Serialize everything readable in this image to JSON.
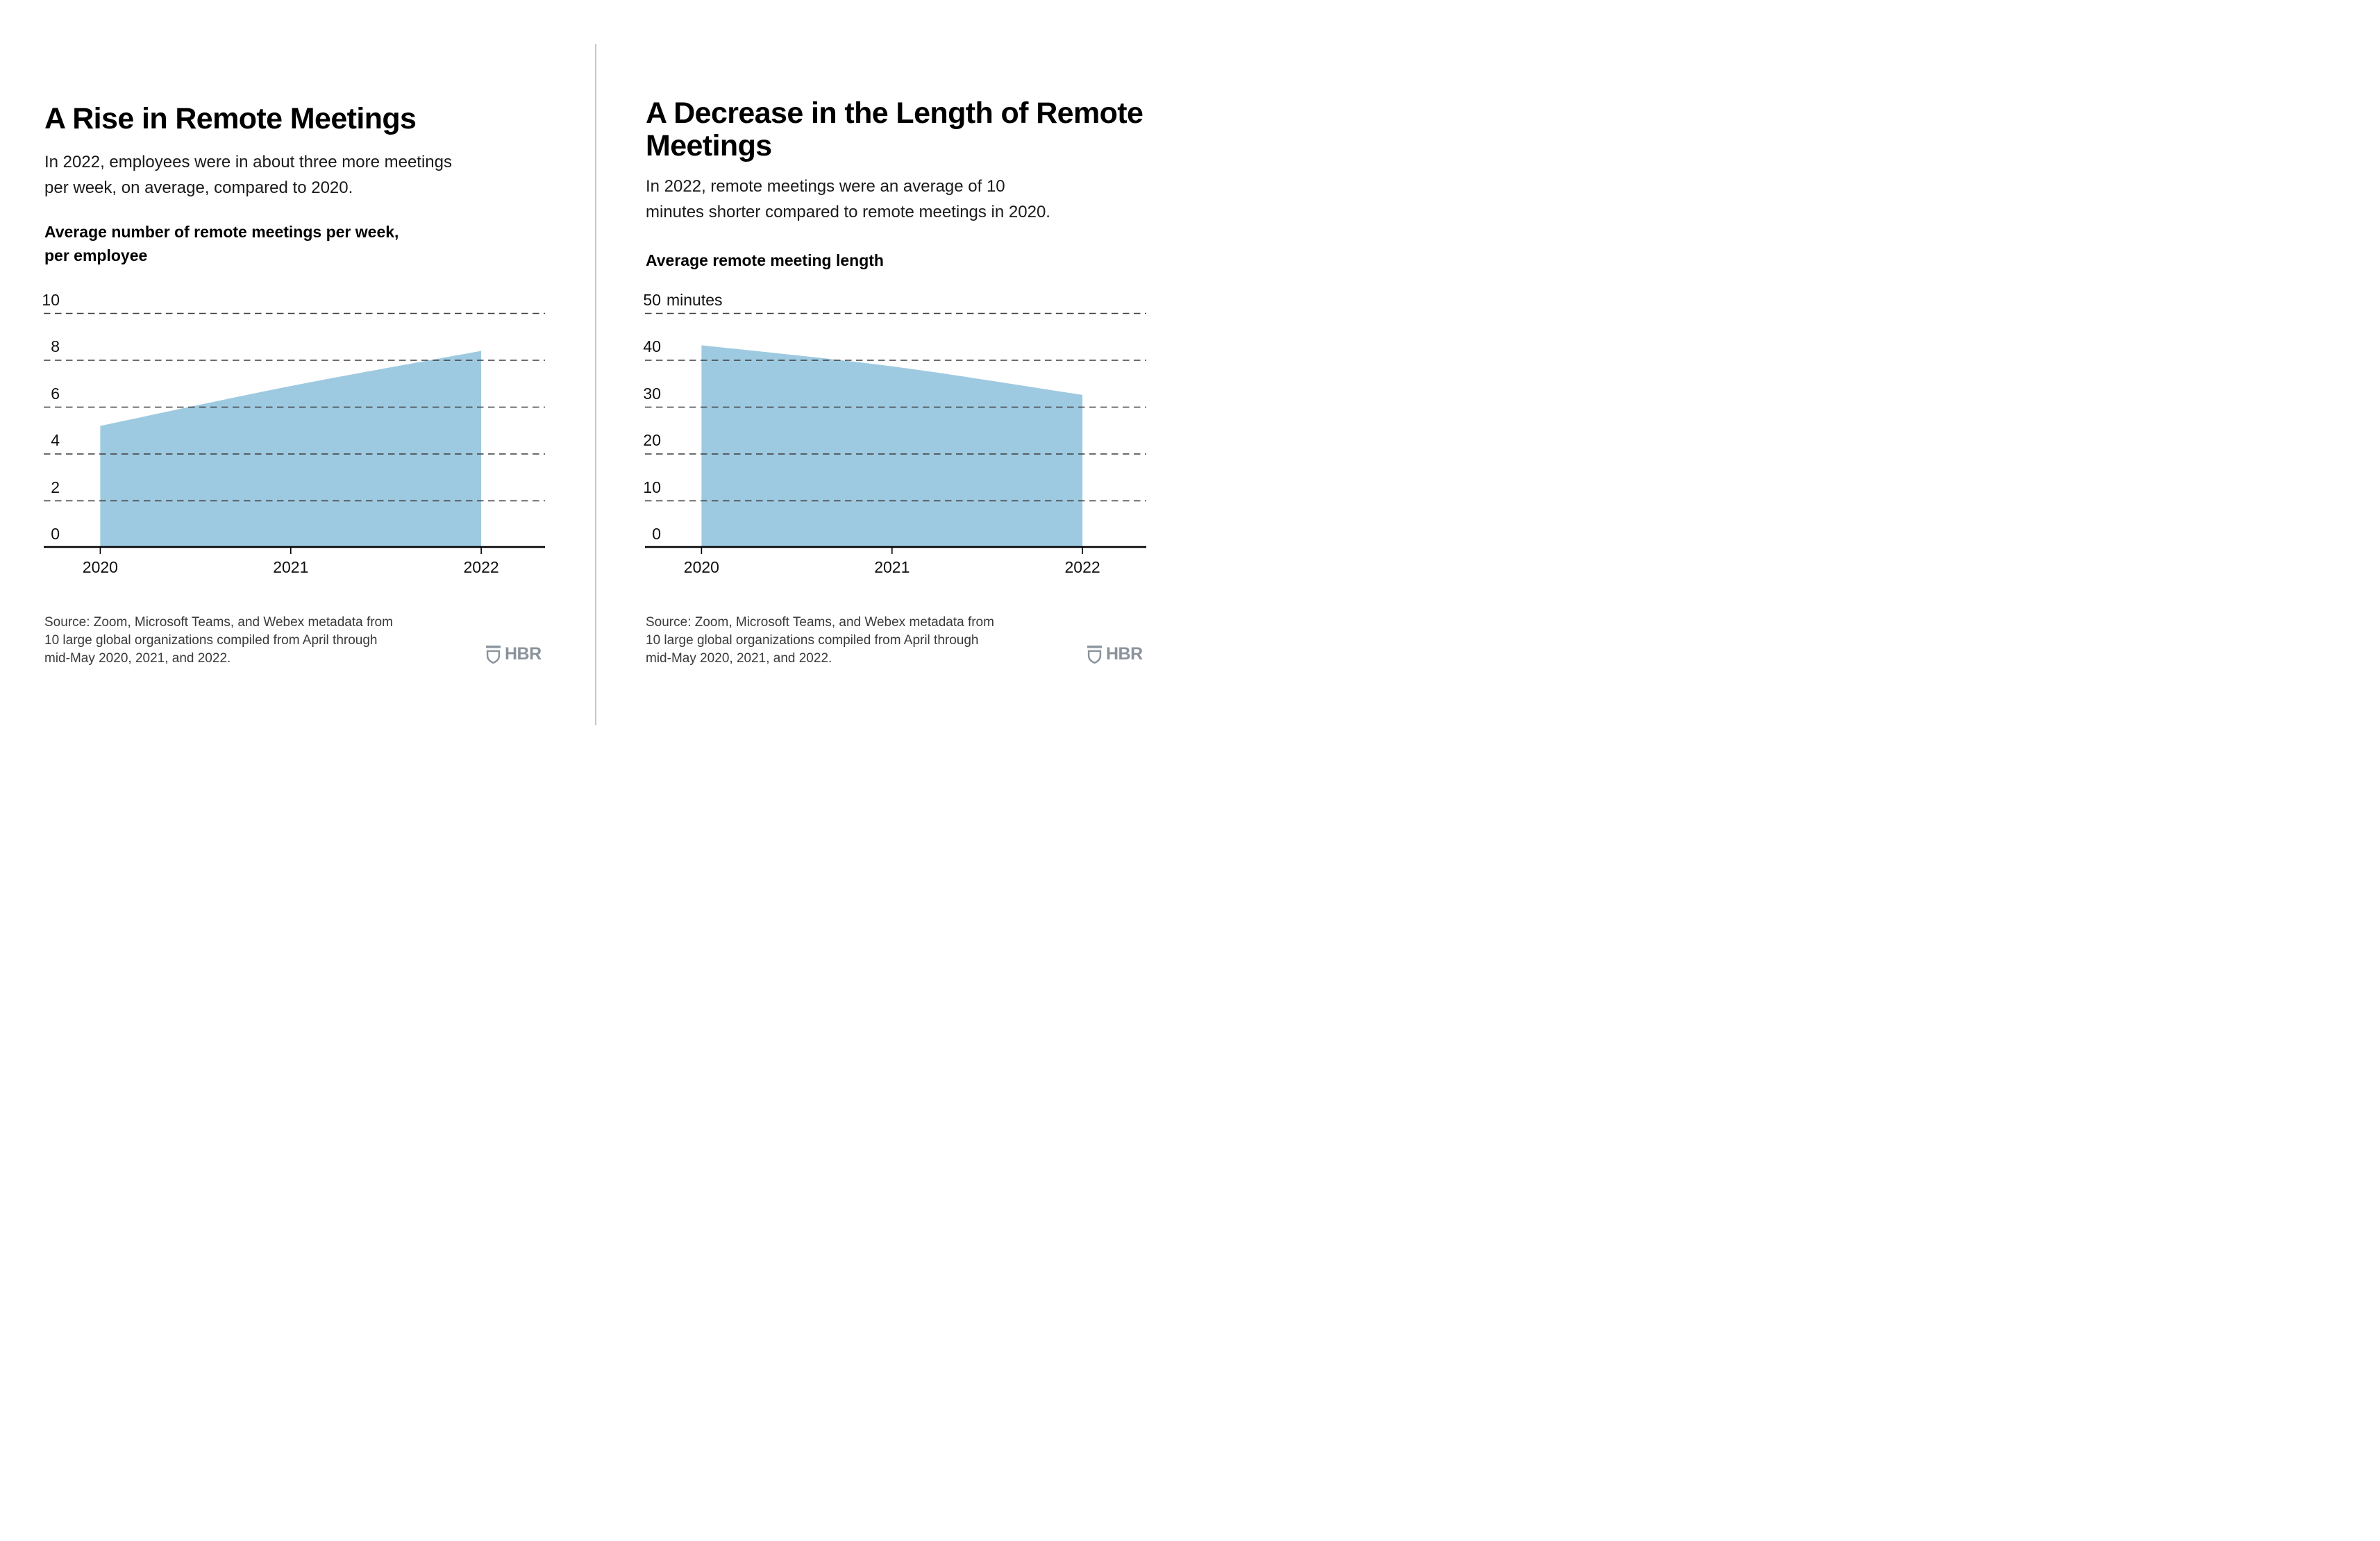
{
  "page": {
    "background": "#FFFFFF",
    "divider_color": "#C8C8C8"
  },
  "colors": {
    "area_fill": "#9ECAE1",
    "axis_line": "#000000",
    "gridline": "#3C3C3C",
    "title_text": "#000000",
    "source_text": "#3A3A3A",
    "logo": "#8A939C"
  },
  "charts": [
    {
      "title_lines": [
        "A Rise in Remote Meetings",
        ""
      ],
      "subtitle_lines": [
        "In 2022, employees were in about three more meetings",
        "per week, on average, compared to 2020."
      ],
      "metric_label_lines": [
        "Average number of remote meetings per week,",
        "per employee"
      ],
      "chart_data": {
        "type": "area",
        "title": "Average number of remote meetings per week, per employee",
        "x": [
          2020,
          2021,
          2022
        ],
        "x_labels": [
          "2020",
          "2021",
          "2022"
        ],
        "values": [
          5.2,
          6.9,
          8.4
        ],
        "ylim": [
          0,
          10
        ],
        "yticks": [
          0,
          2,
          4,
          6,
          8,
          10
        ],
        "ytick_top_suffix": "",
        "grid": "dashed-horizontal",
        "legend": "none",
        "fill_color": "#9ECAE1"
      },
      "source_lines": [
        "Source: Zoom, Microsoft Teams, and Webex metadata from",
        "10 large global organizations compiled from April through",
        "mid-May 2020, 2021, and 2022."
      ],
      "logo_text": "HBR"
    },
    {
      "title_lines": [
        "A Decrease in the Length of Remote",
        "Meetings"
      ],
      "subtitle_lines": [
        "In 2022, remote meetings were an average of 10",
        "minutes shorter compared to remote meetings in 2020."
      ],
      "metric_label_lines": [
        "Average remote meeting length",
        ""
      ],
      "chart_data": {
        "type": "area",
        "title": "Average remote meeting length",
        "x": [
          2020,
          2021,
          2022
        ],
        "x_labels": [
          "2020",
          "2021",
          "2022"
        ],
        "values": [
          43.2,
          38.7,
          32.6
        ],
        "ylim": [
          0,
          50
        ],
        "yticks": [
          0,
          10,
          20,
          30,
          40,
          50
        ],
        "ytick_top_suffix": "minutes",
        "grid": "dashed-horizontal",
        "legend": "none",
        "fill_color": "#9ECAE1"
      },
      "source_lines": [
        "Source: Zoom, Microsoft Teams, and Webex metadata from",
        "10 large global organizations compiled from April through",
        "mid-May 2020, 2021, and 2022."
      ],
      "logo_text": "HBR"
    }
  ]
}
